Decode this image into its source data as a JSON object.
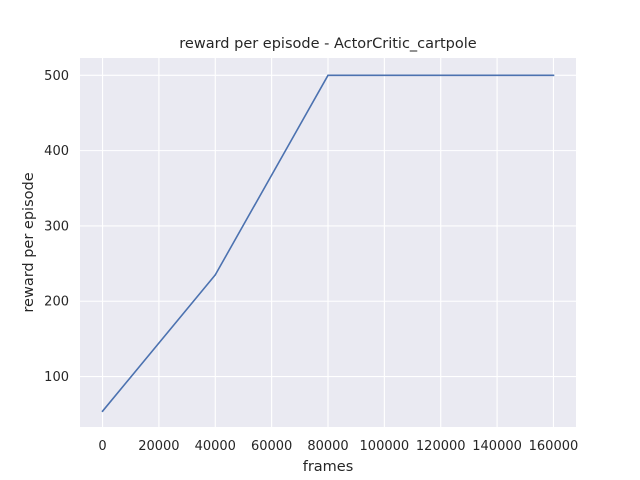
{
  "chart_data": {
    "type": "line",
    "title": "reward per episode - ActorCritic_cartpole",
    "xlabel": "frames",
    "ylabel": "reward per episode",
    "xlim": [
      -8000,
      168000
    ],
    "ylim": [
      33,
      523
    ],
    "xticks": [
      0,
      20000,
      40000,
      60000,
      80000,
      100000,
      120000,
      140000,
      160000
    ],
    "yticks": [
      100,
      200,
      300,
      400,
      500
    ],
    "grid": true,
    "background": "#eaeaf2",
    "grid_color": "#ffffff",
    "series": [
      {
        "color": "#4c72b0",
        "x": [
          0,
          40000,
          80000,
          160000
        ],
        "y": [
          54,
          235,
          500,
          500
        ]
      }
    ]
  }
}
